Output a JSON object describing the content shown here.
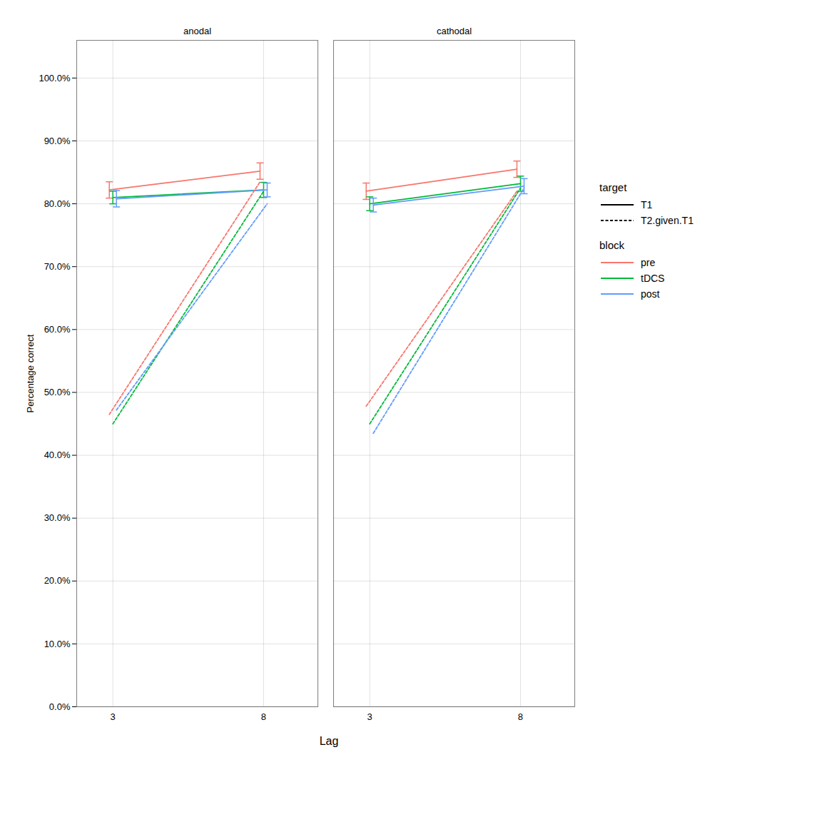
{
  "chart_data": {
    "type": "line",
    "xlabel": "Lag",
    "ylabel": "Percentage correct",
    "x": [
      3,
      8
    ],
    "xlim": [
      1.8,
      9.8
    ],
    "xticks": [
      3,
      8
    ],
    "ylim": [
      0.0,
      1.06
    ],
    "yticks": [
      {
        "value": 0.0,
        "label": "0.0%"
      },
      {
        "value": 0.1,
        "label": "10.0%"
      },
      {
        "value": 0.2,
        "label": "20.0%"
      },
      {
        "value": 0.3,
        "label": "30.0%"
      },
      {
        "value": 0.4,
        "label": "40.0%"
      },
      {
        "value": 0.5,
        "label": "50.0%"
      },
      {
        "value": 0.6,
        "label": "60.0%"
      },
      {
        "value": 0.7,
        "label": "70.0%"
      },
      {
        "value": 0.8,
        "label": "80.0%"
      },
      {
        "value": 0.9,
        "label": "90.0%"
      },
      {
        "value": 1.0,
        "label": "100.0%"
      }
    ],
    "grid": true,
    "legend": "right",
    "legend_groups": [
      {
        "title": "target",
        "entries": [
          {
            "name": "T1",
            "line_style": "solid"
          },
          {
            "name": "T2.given.T1",
            "line_style": "dashed"
          }
        ]
      },
      {
        "title": "block",
        "entries": [
          {
            "name": "pre",
            "color": "#F8766D"
          },
          {
            "name": "tDCS",
            "color": "#00BA38"
          },
          {
            "name": "post",
            "color": "#619CFF"
          }
        ]
      }
    ],
    "panels": [
      {
        "title": "anodal",
        "series": [
          {
            "name": "pre",
            "target": "T1",
            "color": "#F8766D",
            "line_style": "solid",
            "values": [
              0.822,
              0.852
            ],
            "errors": [
              0.013,
              0.013
            ]
          },
          {
            "name": "tDCS",
            "target": "T1",
            "color": "#00BA38",
            "line_style": "solid",
            "values": [
              0.81,
              0.822
            ],
            "errors": [
              0.01,
              0.012
            ]
          },
          {
            "name": "post",
            "target": "T1",
            "color": "#619CFF",
            "line_style": "solid",
            "values": [
              0.808,
              0.822
            ],
            "errors": [
              0.013,
              0.011
            ]
          },
          {
            "name": "pre",
            "target": "T2.given.T1",
            "color": "#F8766D",
            "line_style": "dashed",
            "values": [
              0.465,
              0.835
            ]
          },
          {
            "name": "tDCS",
            "target": "T2.given.T1",
            "color": "#00BA38",
            "line_style": "dashed",
            "values": [
              0.45,
              0.82
            ]
          },
          {
            "name": "post",
            "target": "T2.given.T1",
            "color": "#619CFF",
            "line_style": "dashed",
            "values": [
              0.472,
              0.8
            ]
          }
        ]
      },
      {
        "title": "cathodal",
        "series": [
          {
            "name": "pre",
            "target": "T1",
            "color": "#F8766D",
            "line_style": "solid",
            "values": [
              0.82,
              0.855
            ],
            "errors": [
              0.013,
              0.013
            ]
          },
          {
            "name": "tDCS",
            "target": "T1",
            "color": "#00BA38",
            "line_style": "solid",
            "values": [
              0.8,
              0.832
            ],
            "errors": [
              0.011,
              0.012
            ]
          },
          {
            "name": "post",
            "target": "T1",
            "color": "#619CFF",
            "line_style": "solid",
            "values": [
              0.798,
              0.828
            ],
            "errors": [
              0.011,
              0.012
            ]
          },
          {
            "name": "pre",
            "target": "T2.given.T1",
            "color": "#F8766D",
            "line_style": "dashed",
            "values": [
              0.478,
              0.82
            ]
          },
          {
            "name": "tDCS",
            "target": "T2.given.T1",
            "color": "#00BA38",
            "line_style": "dashed",
            "values": [
              0.45,
              0.825
            ]
          },
          {
            "name": "post",
            "target": "T2.given.T1",
            "color": "#619CFF",
            "line_style": "dashed",
            "values": [
              0.435,
              0.825
            ]
          }
        ]
      }
    ]
  }
}
